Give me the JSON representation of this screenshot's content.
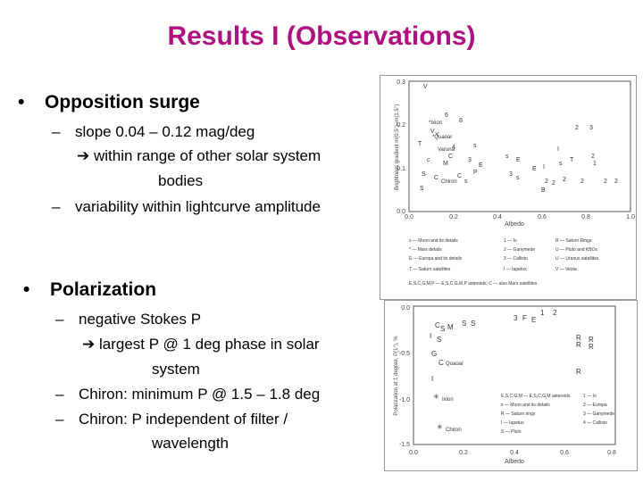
{
  "title": "Results I (Observations)",
  "section1": {
    "bullet": "•",
    "heading": "Opposition surge",
    "dash": "–",
    "item1": "slope 0.04 – 0.12 mag/deg",
    "arrow": "➔",
    "item1_line2": "within range of other solar system",
    "item1_line3": "bodies",
    "item2": "variability within lightcurve amplitude"
  },
  "section2": {
    "bullet": "•",
    "heading": "Polarization",
    "dash": "–",
    "item1": "negative Stokes P",
    "arrow": "➔",
    "item1_line2": "largest P @ 1 deg phase in solar",
    "item1_line3": "system",
    "item2": "Chiron: minimum P @ 1.5 – 1.8 deg",
    "item3": "Chiron: P independent of filter /",
    "item3_line2": "wavelength"
  },
  "plot1": {
    "yticks": [
      "0.3",
      "0.2",
      "0.1",
      "0.0"
    ],
    "xticks": [
      "0.0",
      "0.2",
      "0.4",
      "0.6",
      "0.8",
      "1.0"
    ],
    "xlabel": "Albedo",
    "ylabel": "Brightness gradient m(0.5°)–m(1.5°)",
    "labels": [
      {
        "text": "*Ixion"
      },
      {
        "text": "*Quaoar"
      },
      {
        "text": "Varuna"
      },
      {
        "text": "Chiron"
      }
    ],
    "legend": [
      [
        "s — Moon and its details",
        "1 — Io",
        "R — Saturn Rings"
      ],
      [
        "* — Mars details",
        "2 — Ganymede",
        "U — Pluto and KBOs"
      ],
      [
        "E — Europa and its details",
        "3 — Callisto",
        "U — Uranus satellites"
      ],
      [
        "T — Saturn satellites",
        "I — Iapetus",
        "V — Vesta"
      ]
    ],
    "legend_footer": "E,S,C,G,M,P — E,S,C,G,M,P asteroids; C — also Mars satellites"
  },
  "plot2": {
    "yticks": [
      "0.0",
      "-0.5",
      "-1.0",
      "-1.5"
    ],
    "xticks": [
      "0.0",
      "0.2",
      "0.4",
      "0.6",
      "0.8"
    ],
    "xlabel": "Albedo",
    "ylabel": "Polarization at 1 degree, P(1°), %",
    "labels": [
      {
        "text": "Quaoar"
      },
      {
        "text": "Ixion"
      },
      {
        "text": "Chiron"
      }
    ],
    "legend": [
      [
        "E,S,C,G,M — E,S,C,G,M asteroids",
        "1 — Io"
      ],
      [
        "s — Moon and its details",
        "2 — Europa"
      ],
      [
        "R — Saturn rings",
        "3 — Ganymede"
      ],
      [
        "I — Iapetus",
        "4 — Callisto"
      ],
      [
        "S — Pluto",
        ""
      ]
    ]
  }
}
